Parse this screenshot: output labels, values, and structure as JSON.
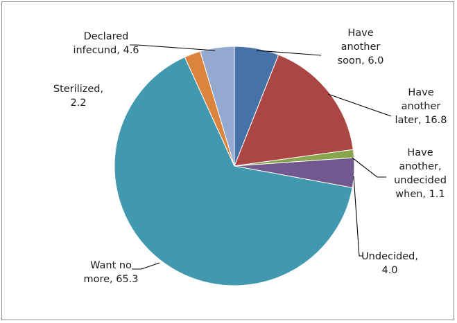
{
  "chart_data": {
    "type": "pie",
    "title": "",
    "unit": "",
    "slices": [
      {
        "label_lines": [
          "Have",
          "another",
          "soon, 6.0"
        ],
        "value": 6.0,
        "color": "#4572A7"
      },
      {
        "label_lines": [
          "Have",
          "another",
          "later, 16.8"
        ],
        "value": 16.8,
        "color": "#AA4643"
      },
      {
        "label_lines": [
          "Have",
          "another,",
          "undecided",
          "when, 1.1"
        ],
        "value": 1.1,
        "color": "#89A54E"
      },
      {
        "label_lines": [
          "Undecided,",
          "4.0"
        ],
        "value": 4.0,
        "color": "#71588F"
      },
      {
        "label_lines": [
          "Want no",
          "more, 65.3"
        ],
        "value": 65.3,
        "color": "#4198AF"
      },
      {
        "label_lines": [
          "Sterilized,",
          "2.2"
        ],
        "value": 2.2,
        "color": "#DB843D"
      },
      {
        "label_lines": [
          "Declared",
          "infecund, 4.6"
        ],
        "value": 4.6,
        "color": "#93A9CF"
      }
    ],
    "legend": "none",
    "start_angle_deg": 0,
    "direction": "clockwise"
  }
}
